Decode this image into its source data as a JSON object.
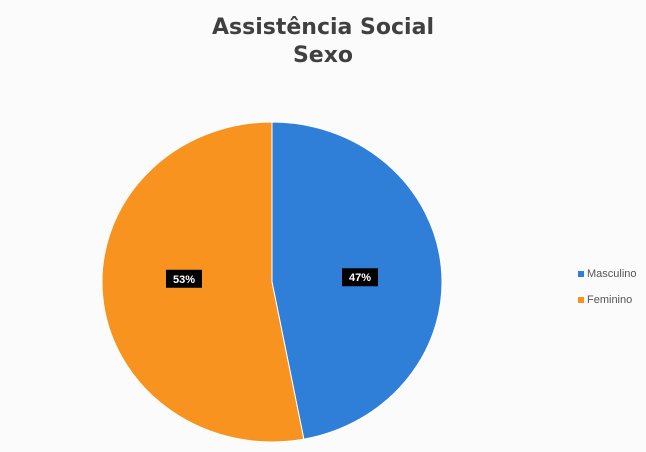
{
  "chart_data": {
    "type": "pie",
    "title": "Assistência Social",
    "subtitle": "Sexo",
    "slices": [
      {
        "label": "Masculino",
        "value": 47,
        "display": "47%",
        "color": "#2f7fd9"
      },
      {
        "label": "Feminino",
        "value": 53,
        "display": "53%",
        "color": "#f7931e"
      }
    ],
    "legend_position": "right"
  }
}
